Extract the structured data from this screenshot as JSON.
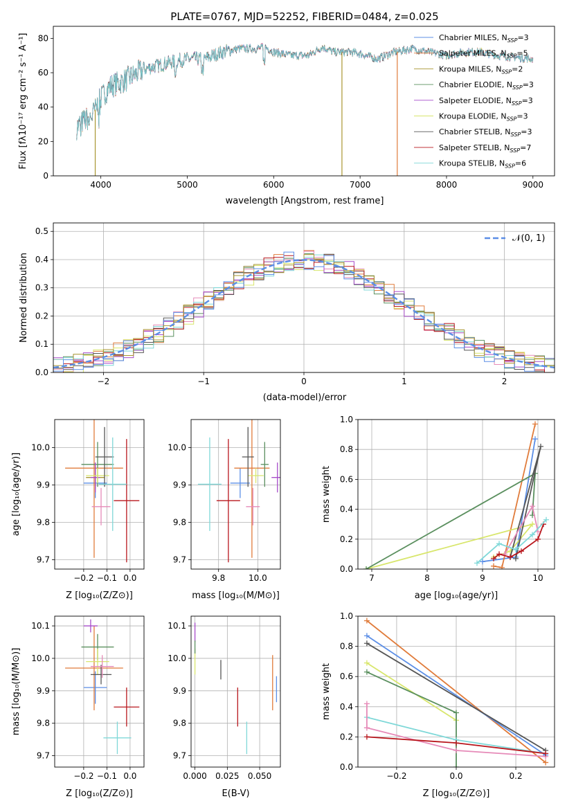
{
  "colors": {
    "c0": "#5b8ee6",
    "c1": "#e07b3a",
    "c2": "#a89530",
    "c3": "#5a8f5e",
    "c4": "#a64ac9",
    "c5": "#d8e66b",
    "c6": "#555555",
    "c7": "#b8161c",
    "c8": "#7fd8d8",
    "c9": "#e68ab8"
  },
  "chart_data": [
    {
      "type": "line",
      "title": "PLATE=0767, MJD=52252, FIBERID=0484, z=0.025",
      "xlabel": "wavelength [Angstrom, rest frame]",
      "ylabel": "Flux [fλ10⁻¹⁷ erg cm⁻² s⁻¹ A⁻¹]",
      "xlim": [
        3450,
        9250
      ],
      "ylim": [
        0,
        87
      ],
      "xticks": [
        "4000",
        "5000",
        "6000",
        "7000",
        "8000",
        "9000"
      ],
      "yticks": [
        "0",
        "20",
        "40",
        "60",
        "80"
      ],
      "continuum": {
        "x": [
          3720,
          3800,
          3900,
          4000,
          4100,
          4300,
          4500,
          4800,
          5000,
          5200,
          5400,
          5600,
          5800,
          5900,
          6000,
          6200,
          6400,
          6562,
          6700,
          6900,
          7000,
          7200,
          7400,
          7600,
          7800,
          8000,
          8200,
          8400,
          8600,
          8800,
          9000
        ],
        "y": [
          28,
          32,
          35,
          45,
          52,
          56,
          62,
          66,
          68,
          68,
          72,
          74,
          74,
          75,
          72,
          70,
          70,
          75,
          72,
          72,
          71,
          68,
          72,
          74,
          72,
          70,
          72,
          72,
          70,
          69,
          68
        ]
      },
      "dropouts": [
        {
          "x": 3935,
          "color": "c2"
        },
        {
          "x": 6790,
          "color": "c2"
        },
        {
          "x": 7430,
          "color": "c1"
        }
      ],
      "legend": [
        {
          "color": "c0",
          "label": "Chabrier MILES, N",
          "sub": "SSP",
          "val": "=3"
        },
        {
          "color": "c1",
          "label": "Salpeter MILES, N",
          "sub": "SSP",
          "val": "=5"
        },
        {
          "color": "c2",
          "label": "Kroupa MILES, N",
          "sub": "SSP",
          "val": "=2"
        },
        {
          "color": "c3",
          "label": "Chabrier ELODIE, N",
          "sub": "SSP",
          "val": "=3"
        },
        {
          "color": "c4",
          "label": "Salpeter ELODIE, N",
          "sub": "SSP",
          "val": "=3"
        },
        {
          "color": "c5",
          "label": "Kroupa ELODIE, N",
          "sub": "SSP",
          "val": "=3"
        },
        {
          "color": "c6",
          "label": "Chabrier STELIB, N",
          "sub": "SSP",
          "val": "=3"
        },
        {
          "color": "c7",
          "label": "Salpeter STELIB, N",
          "sub": "SSP",
          "val": "=7"
        },
        {
          "color": "c8",
          "label": "Kroupa STELIB, N",
          "sub": "SSP",
          "val": "=6"
        }
      ]
    },
    {
      "type": "histogram",
      "xlabel": "(data-model)/error",
      "ylabel": "Normed distribution",
      "xlim": [
        -2.5,
        2.5
      ],
      "ylim": [
        0,
        0.53
      ],
      "xticks": [
        "−2",
        "−1",
        "0",
        "1",
        "2"
      ],
      "yticks": [
        "0.0",
        "0.1",
        "0.2",
        "0.3",
        "0.4",
        "0.5"
      ],
      "bins": {
        "start": -2.5,
        "width": 0.1,
        "count": 50
      },
      "reference": {
        "label": "𝒩(0, 1)",
        "color": "c0"
      }
    },
    {
      "type": "scatter",
      "xlabel": "Z [log₁₀(Z/Z⊙)]",
      "ylabel": "age  [log₁₀(age/yr)]",
      "xlim": [
        -0.325,
        0.06
      ],
      "ylim": [
        9.675,
        10.075
      ],
      "xticks": [
        "−0.2",
        "−0.1",
        "0.0"
      ],
      "xtick_values": [
        -0.2,
        -0.1,
        0.0
      ],
      "yticks": [
        "9.7",
        "9.8",
        "9.9",
        "10.0"
      ],
      "ytick_values": [
        9.7,
        9.8,
        9.9,
        10.0
      ],
      "points": [
        {
          "color": "c0",
          "x": -0.15,
          "xerr": 0.05,
          "y": 9.905,
          "yerr": 0.04
        },
        {
          "color": "c1",
          "x": -0.155,
          "xerr": 0.125,
          "y": 9.945,
          "yerr": 0.24
        },
        {
          "color": "c2",
          "x": -0.15,
          "xerr": 0.04,
          "y": 9.92,
          "yerr": 0.03
        },
        {
          "color": "c3",
          "x": -0.14,
          "xerr": 0.07,
          "y": 9.955,
          "yerr": 0.06
        },
        {
          "color": "c4",
          "x": -0.15,
          "xerr": 0.02,
          "y": 9.92,
          "yerr": 0.04
        },
        {
          "color": "c5",
          "x": -0.14,
          "xerr": 0.05,
          "y": 9.925,
          "yerr": 0.02
        },
        {
          "color": "c6",
          "x": -0.11,
          "xerr": 0.04,
          "y": 9.975,
          "yerr": 0.08
        },
        {
          "color": "c7",
          "x": -0.015,
          "xerr": 0.055,
          "y": 9.858,
          "yerr": 0.165
        },
        {
          "color": "c8",
          "x": -0.075,
          "xerr": 0.06,
          "y": 9.902,
          "yerr": 0.125
        },
        {
          "color": "c9",
          "x": -0.125,
          "xerr": 0.04,
          "y": 9.842,
          "yerr": 0.05
        }
      ]
    },
    {
      "type": "scatter",
      "xlabel": "mass [log₁₀(M/M⊙)]",
      "ylabel": "",
      "xlim": [
        9.66,
        10.115
      ],
      "ylim": [
        9.675,
        10.075
      ],
      "xticks": [
        "9.8",
        "10.0"
      ],
      "xtick_values": [
        9.8,
        10.0
      ],
      "yticks": [
        "9.7",
        "9.8",
        "9.9",
        "10.0"
      ],
      "ytick_values": [
        9.7,
        9.8,
        9.9,
        10.0
      ],
      "points": [
        {
          "color": "c0",
          "x": 9.91,
          "xerr": 0.05,
          "y": 9.905,
          "yerr": 0.04
        },
        {
          "color": "c1",
          "x": 9.97,
          "xerr": 0.09,
          "y": 9.945,
          "yerr": 0.24
        },
        {
          "color": "c3",
          "x": 10.035,
          "xerr": 0.02,
          "y": 9.955,
          "yerr": 0.06
        },
        {
          "color": "c4",
          "x": 10.1,
          "xerr": 0.03,
          "y": 9.92,
          "yerr": 0.04
        },
        {
          "color": "c5",
          "x": 9.99,
          "xerr": 0.04,
          "y": 9.925,
          "yerr": 0.02
        },
        {
          "color": "c6",
          "x": 9.95,
          "xerr": 0.03,
          "y": 9.975,
          "yerr": 0.08
        },
        {
          "color": "c7",
          "x": 9.85,
          "xerr": 0.06,
          "y": 9.858,
          "yerr": 0.165
        },
        {
          "color": "c8",
          "x": 9.755,
          "xerr": 0.06,
          "y": 9.902,
          "yerr": 0.125
        },
        {
          "color": "c9",
          "x": 9.975,
          "xerr": 0.035,
          "y": 9.842,
          "yerr": 0.05
        }
      ]
    },
    {
      "type": "line",
      "xlabel": "age  [log₁₀(age/yr)]",
      "ylabel": "mass weight",
      "xlim": [
        6.75,
        10.3
      ],
      "ylim": [
        0,
        1
      ],
      "xticks": [
        "7",
        "8",
        "9",
        "10"
      ],
      "xtick_values": [
        7,
        8,
        9,
        10
      ],
      "yticks": [
        "0.0",
        "0.2",
        "0.4",
        "0.6",
        "0.8",
        "1.0"
      ],
      "ytick_values": [
        0,
        0.2,
        0.4,
        0.6,
        0.8,
        1.0
      ],
      "series": [
        {
          "color": "c0",
          "x": [
            9.0,
            9.6,
            9.95
          ],
          "y": [
            0.05,
            0.08,
            0.87
          ]
        },
        {
          "color": "c1",
          "x": [
            9.2,
            9.35,
            9.95
          ],
          "y": [
            0.02,
            0.01,
            0.97
          ]
        },
        {
          "color": "c5",
          "x": [
            6.9,
            9.9,
            9.5,
            9.2
          ],
          "y": [
            0.0,
            0.3,
            0.12,
            0.08
          ]
        },
        {
          "color": "c3",
          "x": [
            6.9,
            9.95,
            9.9
          ],
          "y": [
            0.0,
            0.64,
            0.36
          ]
        },
        {
          "color": "c6",
          "x": [
            9.6,
            10.05,
            9.5
          ],
          "y": [
            0.07,
            0.82,
            0.08
          ]
        },
        {
          "color": "c9",
          "x": [
            9.4,
            9.9,
            10.0
          ],
          "y": [
            0.1,
            0.42,
            0.25
          ]
        },
        {
          "color": "c7",
          "x": [
            9.2,
            9.3,
            9.5,
            9.7,
            10.0,
            10.1
          ],
          "y": [
            0.07,
            0.1,
            0.08,
            0.12,
            0.2,
            0.3
          ]
        },
        {
          "color": "c8",
          "x": [
            8.9,
            9.3,
            9.6,
            9.9,
            10.15
          ],
          "y": [
            0.04,
            0.17,
            0.13,
            0.23,
            0.33
          ]
        }
      ]
    },
    {
      "type": "scatter",
      "xlabel": "Z [log₁₀(Z/Z⊙)]",
      "ylabel": "mass [log₁₀(M/M⊙)]",
      "xlim": [
        -0.325,
        0.06
      ],
      "ylim": [
        9.665,
        10.13
      ],
      "xticks": [
        "−0.2",
        "−0.1",
        "0.0"
      ],
      "xtick_values": [
        -0.2,
        -0.1,
        0.0
      ],
      "yticks": [
        "9.7",
        "9.8",
        "9.9",
        "10.0",
        "10.1"
      ],
      "ytick_values": [
        9.7,
        9.8,
        9.9,
        10.0,
        10.1
      ],
      "points": [
        {
          "color": "c0",
          "x": -0.15,
          "xerr": 0.05,
          "y": 9.91,
          "yerr": 0.05
        },
        {
          "color": "c1",
          "x": -0.155,
          "xerr": 0.125,
          "y": 9.97,
          "yerr": 0.13
        },
        {
          "color": "c3",
          "x": -0.14,
          "xerr": 0.07,
          "y": 10.035,
          "yerr": 0.04
        },
        {
          "color": "c4",
          "x": -0.17,
          "xerr": 0.03,
          "y": 10.1,
          "yerr": 0.02
        },
        {
          "color": "c5",
          "x": -0.14,
          "xerr": 0.05,
          "y": 9.99,
          "yerr": 0.04
        },
        {
          "color": "c6",
          "x": -0.125,
          "xerr": 0.045,
          "y": 9.95,
          "yerr": 0.03
        },
        {
          "color": "c7",
          "x": -0.015,
          "xerr": 0.055,
          "y": 9.85,
          "yerr": 0.06
        },
        {
          "color": "c8",
          "x": -0.055,
          "xerr": 0.06,
          "y": 9.755,
          "yerr": 0.05
        },
        {
          "color": "c9",
          "x": -0.12,
          "xerr": 0.05,
          "y": 9.975,
          "yerr": 0.035
        }
      ]
    },
    {
      "type": "scatter",
      "xlabel": "E(B-V)",
      "ylabel": "",
      "xlim": [
        -0.003,
        0.066
      ],
      "ylim": [
        9.665,
        10.13
      ],
      "xticks": [
        "0.000",
        "0.025",
        "0.050"
      ],
      "xtick_values": [
        0,
        0.025,
        0.05
      ],
      "yticks": [
        "9.7",
        "9.8",
        "9.9",
        "10.0",
        "10.1"
      ],
      "ytick_values": [
        9.7,
        9.8,
        9.9,
        10.0,
        10.1
      ],
      "points": [
        {
          "color": "c4",
          "x": 0.0,
          "xerr": 0,
          "y": 10.08,
          "yerr": 0.03
        },
        {
          "color": "c5",
          "x": 0.0,
          "xerr": 0,
          "y": 9.99,
          "yerr": 0.04
        },
        {
          "color": "c3",
          "x": 0.0,
          "xerr": 0,
          "y": 10.035,
          "yerr": 0.02
        },
        {
          "color": "c6",
          "x": 0.02,
          "xerr": 0,
          "y": 9.965,
          "yerr": 0.03
        },
        {
          "color": "c7",
          "x": 0.033,
          "xerr": 0,
          "y": 9.85,
          "yerr": 0.06
        },
        {
          "color": "c8",
          "x": 0.04,
          "xerr": 0,
          "y": 9.755,
          "yerr": 0.05
        },
        {
          "color": "c1",
          "x": 0.06,
          "xerr": 0,
          "y": 9.925,
          "yerr": 0.085
        },
        {
          "color": "c0",
          "x": 0.063,
          "xerr": 0,
          "y": 9.905,
          "yerr": 0.04
        }
      ]
    },
    {
      "type": "line",
      "xlabel": "Z [log₁₀(Z/Z⊙)]",
      "ylabel": "mass weight",
      "xlim": [
        -0.33,
        0.33
      ],
      "ylim": [
        0,
        1
      ],
      "xticks": [
        "−0.2",
        "0.0",
        "0.2"
      ],
      "xtick_values": [
        -0.2,
        0,
        0.2
      ],
      "yticks": [
        "0.0",
        "0.2",
        "0.4",
        "0.6",
        "0.8",
        "1.0"
      ],
      "ytick_values": [
        0,
        0.2,
        0.4,
        0.6,
        0.8,
        1.0
      ],
      "series": [
        {
          "color": "c1",
          "x": [
            -0.3,
            0.3
          ],
          "y": [
            0.97,
            0.03
          ]
        },
        {
          "color": "c0",
          "x": [
            -0.3,
            0.3
          ],
          "y": [
            0.87,
            0.08
          ]
        },
        {
          "color": "c6",
          "x": [
            -0.3,
            0.3
          ],
          "y": [
            0.82,
            0.11
          ]
        },
        {
          "color": "c5",
          "x": [
            -0.3,
            0.0
          ],
          "y": [
            0.69,
            0.31
          ]
        },
        {
          "color": "c3",
          "x": [
            -0.3,
            0.0,
            0.0
          ],
          "y": [
            0.63,
            0.36,
            0.0
          ]
        },
        {
          "color": "c8",
          "x": [
            -0.3,
            0.0,
            0.3
          ],
          "y": [
            0.33,
            0.18,
            0.09
          ]
        },
        {
          "color": "c9",
          "x": [
            -0.3,
            0.0,
            0.3
          ],
          "y": [
            0.26,
            0.11,
            0.07
          ]
        },
        {
          "color": "c7",
          "x": [
            -0.3,
            0.0,
            0.3
          ],
          "y": [
            0.2,
            0.16,
            0.09
          ]
        },
        {
          "color": "c9",
          "x": [
            -0.3,
            -0.3
          ],
          "y": [
            0.42,
            0.26
          ]
        }
      ]
    }
  ]
}
